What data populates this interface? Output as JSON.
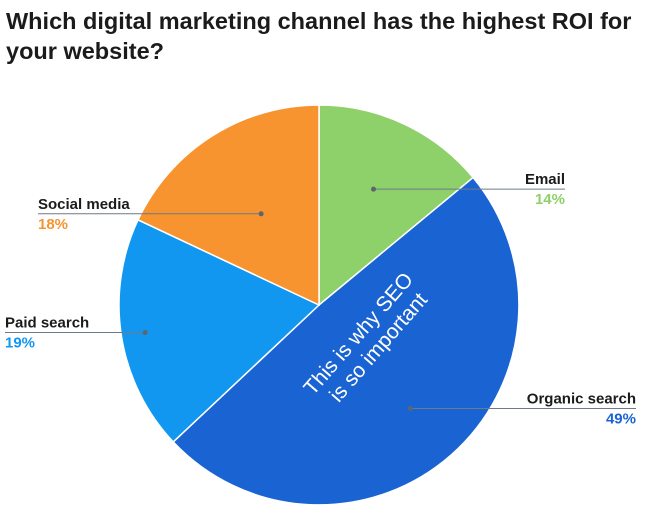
{
  "chart_data": {
    "type": "pie",
    "title": "Which digital marketing channel has the highest ROI for your website?",
    "categories": [
      "Email",
      "Organic search",
      "Paid search",
      "Social media"
    ],
    "values": [
      14,
      49,
      19,
      18
    ],
    "value_labels": [
      "14%",
      "49%",
      "19%",
      "18%"
    ],
    "colors": [
      "#8ed06a",
      "#1a63d3",
      "#1297f0",
      "#f7942f"
    ],
    "start": "top, clockwise",
    "annotation": [
      "This is why SEO",
      "is so important"
    ]
  }
}
